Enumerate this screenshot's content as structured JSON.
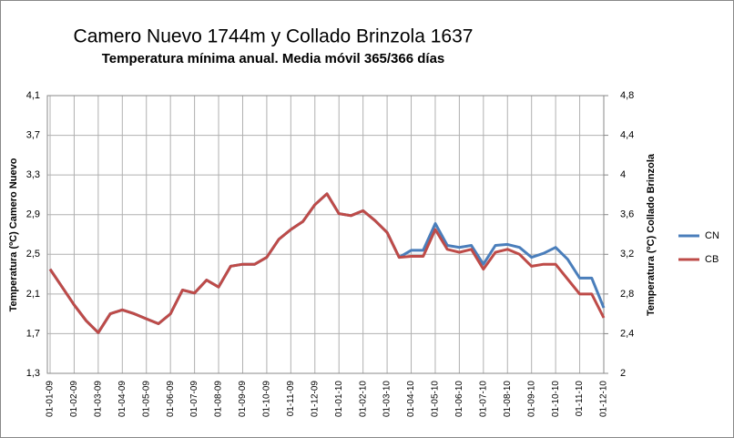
{
  "chart_data": {
    "type": "line",
    "title": "Camero Nuevo 1744m y Collado Brinzola 1637",
    "subtitle": "Temperatura mínima anual. Media móvil 365/366 días",
    "ylabel": "Temperatura (ºC) Camero Nuevo",
    "y2label": "Temperatura (ºC) Collado Brinzola",
    "categories": [
      "01-01-09",
      null,
      "01-02-09",
      null,
      "01-03-09",
      null,
      "01-04-09",
      null,
      "01-05-09",
      null,
      "01-06-09",
      null,
      "01-07-09",
      null,
      "01-08-09",
      null,
      "01-09-09",
      null,
      "01-10-09",
      null,
      "01-11-09",
      null,
      "01-12-09",
      null,
      "01-01-10",
      null,
      "01-02-10",
      null,
      "01-03-10",
      null,
      "01-04-10",
      null,
      "01-05-10",
      null,
      "01-06-10",
      null,
      "01-07-10",
      null,
      "01-08-10",
      null,
      "01-09-10",
      null,
      "01-10-10",
      null,
      "01-11-10",
      null,
      "01-12-10"
    ],
    "series": [
      {
        "name": "CN",
        "color": "#4a7ebb",
        "axis": "y",
        "values": [
          2.35,
          2.17,
          1.99,
          1.83,
          1.71,
          1.9,
          1.94,
          1.9,
          1.85,
          1.8,
          1.9,
          2.14,
          2.11,
          2.24,
          2.17,
          2.38,
          2.4,
          2.4,
          2.47,
          2.65,
          2.75,
          2.83,
          3.0,
          3.11,
          2.91,
          2.89,
          2.94,
          2.84,
          2.72,
          2.47,
          2.54,
          2.54,
          2.81,
          2.59,
          2.57,
          2.59,
          2.4,
          2.59,
          2.6,
          2.57,
          2.47,
          2.51,
          2.57,
          2.45,
          2.26,
          2.26,
          1.96
        ]
      },
      {
        "name": "CB",
        "color": "#be4b48",
        "axis": "y2",
        "values": [
          3.05,
          2.87,
          2.69,
          2.53,
          2.41,
          2.6,
          2.64,
          2.6,
          2.55,
          2.5,
          2.6,
          2.84,
          2.81,
          2.94,
          2.87,
          3.08,
          3.1,
          3.1,
          3.17,
          3.35,
          3.45,
          3.53,
          3.7,
          3.81,
          3.61,
          3.59,
          3.64,
          3.54,
          3.42,
          3.17,
          3.18,
          3.18,
          3.45,
          3.25,
          3.22,
          3.25,
          3.05,
          3.22,
          3.25,
          3.2,
          3.08,
          3.1,
          3.1,
          2.95,
          2.8,
          2.8,
          2.56
        ]
      }
    ],
    "ylim": [
      1.3,
      4.1
    ],
    "yticks": [
      {
        "value": 1.3,
        "label": "1,3"
      },
      {
        "value": 1.7,
        "label": "1,7"
      },
      {
        "value": 2.1,
        "label": "2,1"
      },
      {
        "value": 2.5,
        "label": "2,5"
      },
      {
        "value": 2.9,
        "label": "2,9"
      },
      {
        "value": 3.3,
        "label": "3,3"
      },
      {
        "value": 3.7,
        "label": "3,7"
      },
      {
        "value": 4.1,
        "label": "4,1"
      }
    ],
    "y2lim": [
      2,
      4.8
    ],
    "y2ticks": [
      2,
      {
        "value": 2.4,
        "label": "2,4"
      },
      {
        "value": 2.8,
        "label": "2,8"
      },
      {
        "value": 3.2,
        "label": "3,2"
      },
      {
        "value": 3.6,
        "label": "3,6"
      },
      4,
      {
        "value": 4.4,
        "label": "4,4"
      },
      {
        "value": 4.8,
        "label": "4,8"
      }
    ],
    "grid": true,
    "legend": "right"
  }
}
